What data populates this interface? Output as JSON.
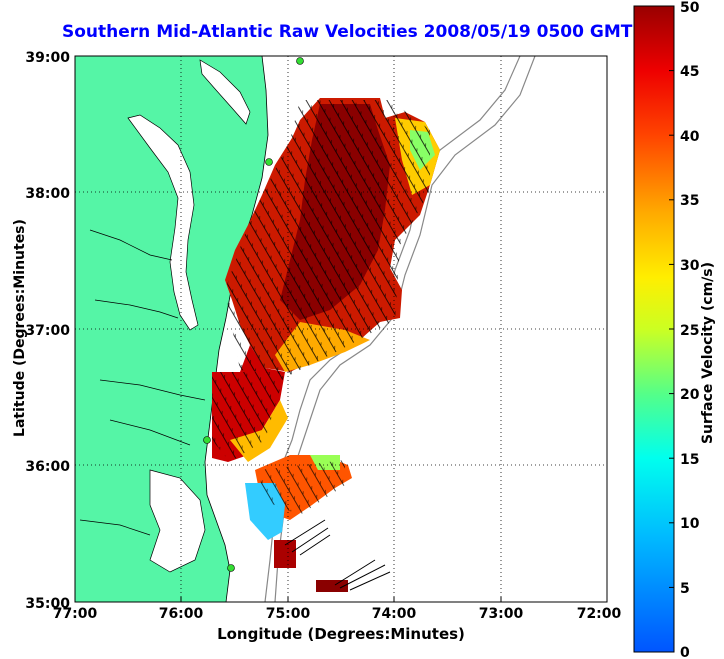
{
  "title": "Southern Mid-Atlantic Raw Velocities 2008/05/19 0500 GMT",
  "xlabel": "Longitude (Degrees:Minutes)",
  "ylabel": "Latitude (Degrees:Minutes)",
  "colorbar": {
    "label": "Surface Velocity (cm/s)",
    "ticks": [
      "0",
      "5",
      "10",
      "15",
      "20",
      "25",
      "30",
      "35",
      "40",
      "45",
      "50"
    ],
    "min": 0,
    "max": 50
  },
  "x_ticks": [
    "77:00",
    "76:00",
    "75:00",
    "74:00",
    "73:00",
    "72:00"
  ],
  "y_ticks": [
    "39:00",
    "38:00",
    "37:00",
    "36:00",
    "35:00"
  ],
  "colors": {
    "land": "#55f5a6",
    "title": "#0000ff",
    "station": "#33dd33"
  },
  "chart_data": {
    "type": "heatmap",
    "x_range": [
      -77,
      -72
    ],
    "y_range": [
      35,
      39
    ],
    "value_range": [
      0,
      50
    ],
    "grid": true
  }
}
